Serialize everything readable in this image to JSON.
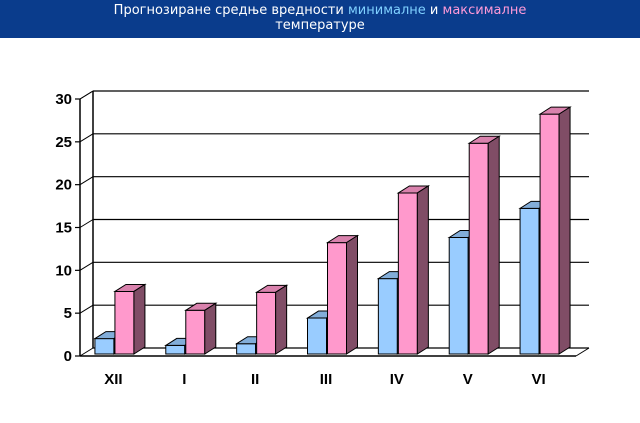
{
  "title": {
    "part1": "Прогнозиране средње вредности ",
    "min_word": "минималне",
    "and_word": " и ",
    "max_word": "максималне",
    "line2": "температуре"
  },
  "colors": {
    "title_bg": "#0a3c8c",
    "min_series": "#99ccff",
    "max_series": "#ff99cc"
  },
  "chart_data": {
    "type": "bar",
    "categories": [
      "XII",
      "I",
      "II",
      "III",
      "IV",
      "V",
      "VI"
    ],
    "series": [
      {
        "name": "минималне",
        "values": [
          1.8,
          1.0,
          1.2,
          4.2,
          8.8,
          13.6,
          17.0
        ]
      },
      {
        "name": "максималне",
        "values": [
          7.3,
          5.1,
          7.2,
          13.0,
          18.8,
          24.6,
          28.0
        ]
      }
    ],
    "yticks": [
      0,
      5,
      10,
      15,
      20,
      25,
      30
    ],
    "ylim": [
      0,
      30
    ],
    "grid": true,
    "style": "3d-clustered-column"
  }
}
